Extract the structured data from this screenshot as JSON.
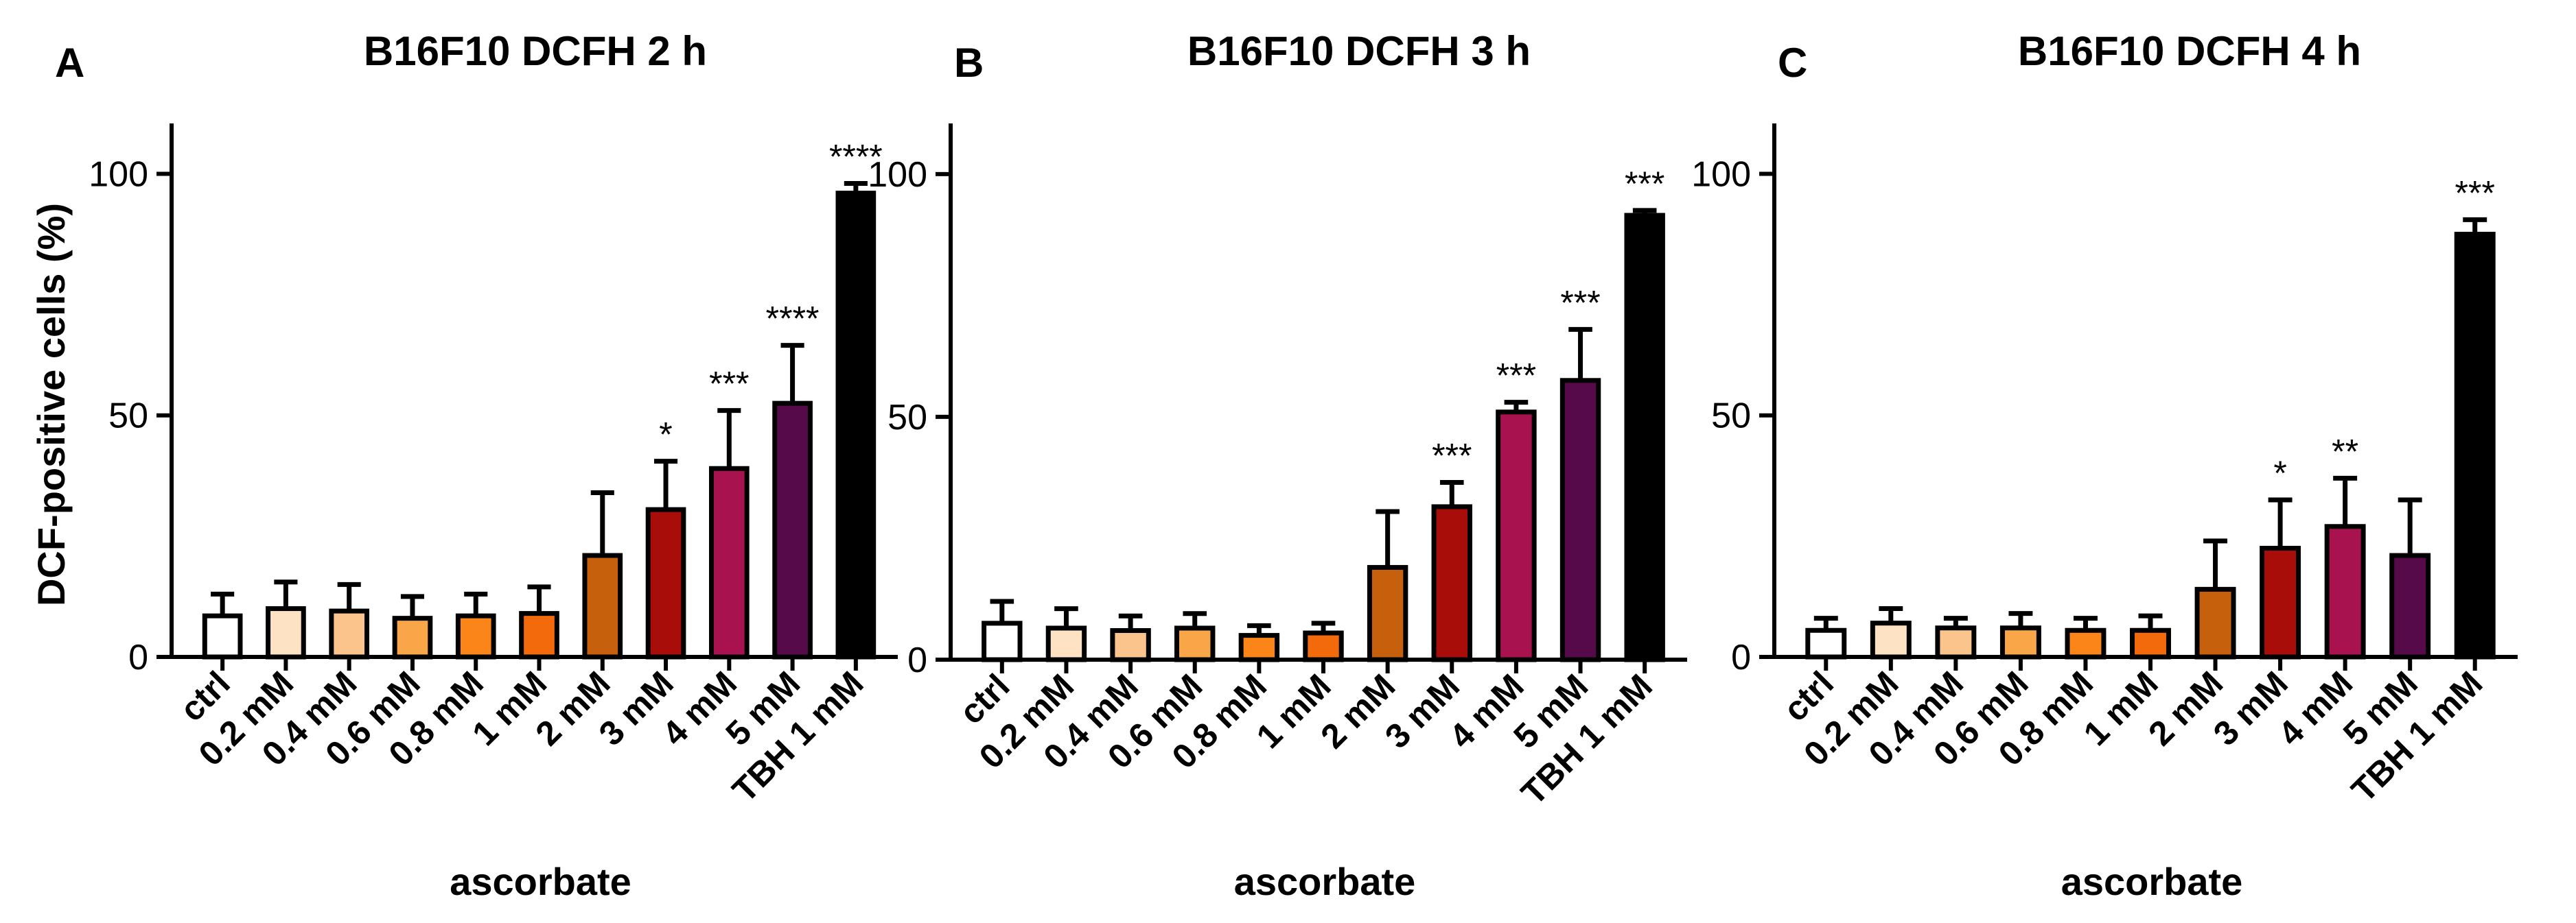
{
  "figure": {
    "ylabel": "DCF-positive cells (%)"
  },
  "chart_data": [
    {
      "type": "bar",
      "panel": "A",
      "title": "B16F10 DCFH 2 h",
      "xlabel": "ascorbate",
      "ylabel": "DCF-positive cells (%)",
      "ylim": [
        0,
        110
      ],
      "yticks": [
        0,
        50,
        100
      ],
      "categories": [
        "ctrl",
        "0.2 mM",
        "0.4 mM",
        "0.6 mM",
        "0.8 mM",
        "1 mM",
        "2 mM",
        "3 mM",
        "4 mM",
        "5 mM",
        "TBH 1 mM"
      ],
      "values": [
        8.5,
        10,
        9.5,
        8,
        8.5,
        9,
        21,
        30.5,
        39,
        52.5,
        96
      ],
      "errors": [
        4.5,
        5.5,
        5.5,
        4.5,
        4.5,
        5.5,
        13,
        10,
        12,
        12,
        2
      ],
      "significance": [
        "",
        "",
        "",
        "",
        "",
        "",
        "",
        "*",
        "***",
        "****",
        "****"
      ],
      "colors": [
        "#ffffff",
        "#fde3c4",
        "#fbc48c",
        "#f9a648",
        "#fb8518",
        "#f36a0c",
        "#c6600c",
        "#a80d0a",
        "#a8134f",
        "#560a4a",
        "#000000"
      ]
    },
    {
      "type": "bar",
      "panel": "B",
      "title": "B16F10 DCFH 3 h",
      "xlabel": "ascorbate",
      "ylabel": "DCF-positive cells (%)",
      "ylim": [
        0,
        110
      ],
      "yticks": [
        0,
        50,
        100
      ],
      "categories": [
        "ctrl",
        "0.2 mM",
        "0.4 mM",
        "0.6 mM",
        "0.8 mM",
        "1 mM",
        "2 mM",
        "3 mM",
        "4 mM",
        "5 mM",
        "TBH 1 mM"
      ],
      "values": [
        7.5,
        6.5,
        6,
        6.5,
        5,
        5.5,
        19,
        31.5,
        51,
        57.5,
        91.5
      ],
      "errors": [
        4.5,
        4,
        3,
        3,
        2,
        2,
        11.5,
        5,
        2,
        10.5,
        1
      ],
      "significance": [
        "",
        "",
        "",
        "",
        "",
        "",
        "",
        "***",
        "***",
        "***",
        "***"
      ],
      "colors": [
        "#ffffff",
        "#fde3c4",
        "#fbc48c",
        "#f9a648",
        "#fb8518",
        "#f36a0c",
        "#c6600c",
        "#a80d0a",
        "#a8134f",
        "#560a4a",
        "#000000"
      ]
    },
    {
      "type": "bar",
      "panel": "C",
      "title": "B16F10 DCFH 4 h",
      "xlabel": "ascorbate",
      "ylabel": "DCF-positive cells (%)",
      "ylim": [
        0,
        110
      ],
      "yticks": [
        0,
        50,
        100
      ],
      "categories": [
        "ctrl",
        "0.2 mM",
        "0.4 mM",
        "0.6 mM",
        "0.8 mM",
        "1 mM",
        "2 mM",
        "3 mM",
        "4 mM",
        "5 mM",
        "TBH 1 mM"
      ],
      "values": [
        5.5,
        7,
        6,
        6,
        5.5,
        5.5,
        14,
        22.5,
        27,
        21,
        87.5
      ],
      "errors": [
        2.5,
        3,
        2,
        3,
        2.5,
        3,
        10,
        10,
        10,
        11.5,
        3
      ],
      "significance": [
        "",
        "",
        "",
        "",
        "",
        "",
        "",
        "*",
        "**",
        "",
        "***"
      ],
      "colors": [
        "#ffffff",
        "#fde3c4",
        "#fbc48c",
        "#f9a648",
        "#fb8518",
        "#f36a0c",
        "#c6600c",
        "#a80d0a",
        "#a8134f",
        "#560a4a",
        "#000000"
      ]
    }
  ]
}
